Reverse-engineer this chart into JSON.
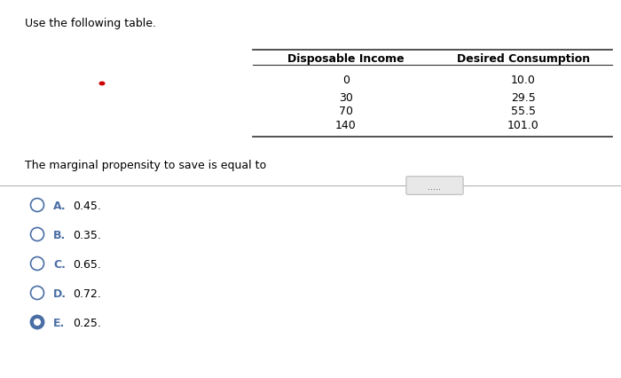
{
  "title": "Use the following table.",
  "table_header": [
    "Disposable Income",
    "Desired Consumption"
  ],
  "table_data": [
    [
      "0",
      "10.0"
    ],
    [
      "30",
      "29.5"
    ],
    [
      "70",
      "55.5"
    ],
    [
      "140",
      "101.0"
    ]
  ],
  "question": "The marginal propensity to save is equal to",
  "divider_dots": ".....",
  "options": [
    {
      "label": "A.",
      "text": "0.45."
    },
    {
      "label": "B.",
      "text": "0.35."
    },
    {
      "label": "C.",
      "text": "0.65."
    },
    {
      "label": "D.",
      "text": "0.72."
    },
    {
      "label": "E.",
      "text": "0.25."
    }
  ],
  "selected_option": 4,
  "bg_color": "#ffffff",
  "text_color": "#000000",
  "option_color": "#4a6fa5",
  "red_dot_color": "#cc0000",
  "table_line_color": "#333333",
  "divider_line_color": "#aaaaaa",
  "dots_box_color": "#e8e8e8",
  "dots_text_color": "#555555"
}
